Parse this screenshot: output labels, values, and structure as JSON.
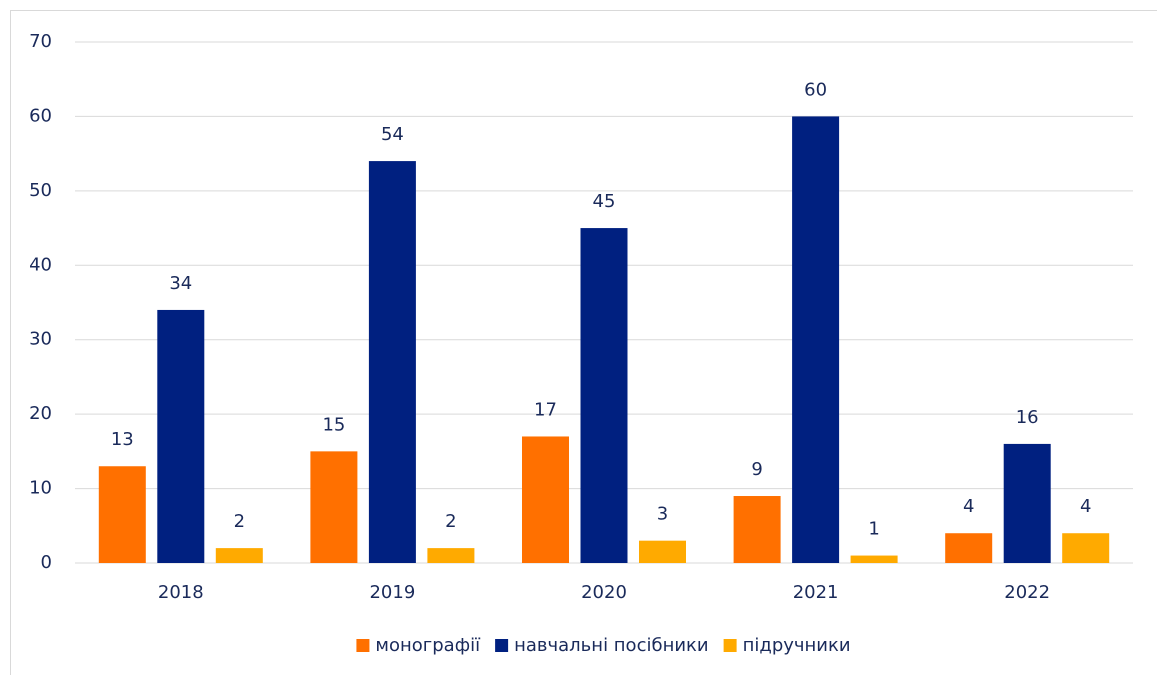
{
  "chart_data": {
    "type": "bar",
    "categories": [
      "2018",
      "2019",
      "2020",
      "2021",
      "2022"
    ],
    "series": [
      {
        "name": "монографії",
        "color": "#ff7000",
        "values": [
          13,
          15,
          17,
          9,
          4
        ]
      },
      {
        "name": "навчальні посібники",
        "color": "#002080",
        "values": [
          34,
          54,
          45,
          60,
          16
        ]
      },
      {
        "name": "підручники",
        "color": "#ffaa00",
        "values": [
          2,
          2,
          3,
          1,
          4
        ]
      }
    ],
    "ylim": [
      0,
      70
    ],
    "yticks": [
      0,
      10,
      20,
      30,
      40,
      50,
      60,
      70
    ],
    "grid": true,
    "legend": "bottom"
  }
}
